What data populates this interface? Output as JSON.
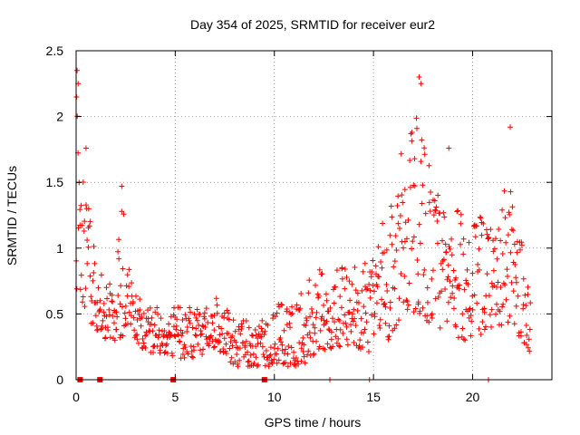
{
  "chart_data": {
    "type": "scatter",
    "title": "Day 354 of 2025, SRMTID for receiver eur2",
    "xlabel": "GPS time / hours",
    "ylabel": "SRMTID / TECUs",
    "xlim": [
      0,
      24
    ],
    "ylim": [
      0,
      2.5
    ],
    "grid": true,
    "marker_color": "#ff0000",
    "x_ticks": [
      0,
      5,
      10,
      15,
      20
    ],
    "x_tick_labels": [
      "0",
      "5",
      "10",
      "15",
      "20"
    ],
    "y_ticks": [
      0,
      0.5,
      1,
      1.5,
      2,
      2.5
    ],
    "y_tick_labels": [
      "0",
      "0.5",
      "1",
      "1.5",
      "2",
      "2.5"
    ],
    "envelope": [
      {
        "t": 0.0,
        "lo": 0.7,
        "hi": 2.35
      },
      {
        "t": 0.3,
        "lo": 0.6,
        "hi": 1.7
      },
      {
        "t": 0.6,
        "lo": 0.45,
        "hi": 1.4
      },
      {
        "t": 1.0,
        "lo": 0.35,
        "hi": 1.0
      },
      {
        "t": 1.5,
        "lo": 0.3,
        "hi": 0.75
      },
      {
        "t": 2.0,
        "lo": 0.3,
        "hi": 0.75
      },
      {
        "t": 2.3,
        "lo": 0.3,
        "hi": 1.45
      },
      {
        "t": 2.8,
        "lo": 0.35,
        "hi": 0.7
      },
      {
        "t": 3.5,
        "lo": 0.2,
        "hi": 0.55
      },
      {
        "t": 4.5,
        "lo": 0.2,
        "hi": 0.55
      },
      {
        "t": 5.5,
        "lo": 0.15,
        "hi": 0.55
      },
      {
        "t": 6.5,
        "lo": 0.2,
        "hi": 0.55
      },
      {
        "t": 7.0,
        "lo": 0.25,
        "hi": 0.65
      },
      {
        "t": 8.0,
        "lo": 0.1,
        "hi": 0.45
      },
      {
        "t": 9.0,
        "lo": 0.1,
        "hi": 0.45
      },
      {
        "t": 10.0,
        "lo": 0.1,
        "hi": 0.6
      },
      {
        "t": 11.0,
        "lo": 0.1,
        "hi": 0.6
      },
      {
        "t": 12.0,
        "lo": 0.15,
        "hi": 0.85
      },
      {
        "t": 13.0,
        "lo": 0.25,
        "hi": 0.85
      },
      {
        "t": 14.0,
        "lo": 0.25,
        "hi": 0.9
      },
      {
        "t": 15.0,
        "lo": 0.2,
        "hi": 0.95
      },
      {
        "t": 15.8,
        "lo": 0.3,
        "hi": 1.4
      },
      {
        "t": 16.5,
        "lo": 0.5,
        "hi": 1.85
      },
      {
        "t": 17.3,
        "lo": 0.5,
        "hi": 2.2
      },
      {
        "t": 18.0,
        "lo": 0.4,
        "hi": 1.5
      },
      {
        "t": 19.0,
        "lo": 0.3,
        "hi": 1.3
      },
      {
        "t": 20.0,
        "lo": 0.3,
        "hi": 1.3
      },
      {
        "t": 21.0,
        "lo": 0.4,
        "hi": 1.15
      },
      {
        "t": 21.8,
        "lo": 0.4,
        "hi": 1.55
      },
      {
        "t": 22.5,
        "lo": 0.3,
        "hi": 1.05
      },
      {
        "t": 22.9,
        "lo": 0.2,
        "hi": 0.7
      }
    ],
    "peaks": [
      {
        "t": 0.05,
        "y": 2.35
      },
      {
        "t": 0.1,
        "y": 2.25
      },
      {
        "t": 0.5,
        "y": 1.76
      },
      {
        "t": 2.3,
        "y": 1.47
      },
      {
        "t": 17.3,
        "y": 2.3
      },
      {
        "t": 17.4,
        "y": 2.25
      },
      {
        "t": 18.8,
        "y": 1.76
      },
      {
        "t": 21.9,
        "y": 1.92
      }
    ],
    "zero_markers": [
      0.2,
      1.2,
      4.9,
      9.5
    ],
    "zero_ticks": [
      12.8,
      14.8,
      20.8
    ],
    "samples_per_hour": 40,
    "time_end": 22.95
  }
}
